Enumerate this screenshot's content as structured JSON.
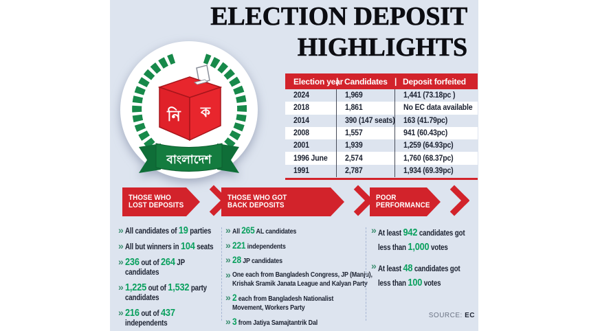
{
  "title": {
    "line1": "ELECTION DEPOSIT",
    "line2": "HIGHLIGHTS"
  },
  "logo": {
    "box_front_text": "নি",
    "box_side_text": "ক",
    "ribbon_text": "বাংলাদেশ"
  },
  "table": {
    "headers": [
      "Election year",
      "Candidates",
      "Deposit forfeited"
    ],
    "rows": [
      [
        "2024",
        "1,969",
        "1,441 (73.18pc )"
      ],
      [
        "2018",
        "1,861",
        "No EC data available"
      ],
      [
        "2014",
        "390 (147 seats)",
        "163 (41.79pc)"
      ],
      [
        "2008",
        "1,557",
        "941 (60.43pc)"
      ],
      [
        "2001",
        "1,939",
        "1,259 (64.93pc)"
      ],
      [
        "1996 June",
        "2,574",
        "1,760 (68.37pc)"
      ],
      [
        "1991",
        "2,787",
        "1,934 (69.39pc)"
      ]
    ]
  },
  "sections": [
    {
      "banner": {
        "line1": "THOSE WHO",
        "line2": "LOST DEPOSITS"
      },
      "items": [
        {
          "segments": [
            {
              "t": "All candidates of ",
              "em": false
            },
            {
              "t": "19",
              "em": true
            },
            {
              "t": " parties",
              "em": false
            }
          ]
        },
        {
          "segments": [
            {
              "t": "All but winners in ",
              "em": false
            },
            {
              "t": "104",
              "em": true
            },
            {
              "t": " seats",
              "em": false
            }
          ]
        },
        {
          "segments": [
            {
              "t": "236",
              "em": true
            },
            {
              "t": " out of ",
              "em": false
            },
            {
              "t": "264",
              "em": true
            },
            {
              "t": " JP",
              "em": false
            },
            {
              "br": true
            },
            {
              "t": "candidates",
              "em": false
            }
          ]
        },
        {
          "segments": [
            {
              "t": "1,225",
              "em": true
            },
            {
              "t": " out of ",
              "em": false
            },
            {
              "t": "1,532",
              "em": true
            },
            {
              "t": " party",
              "em": false
            },
            {
              "br": true
            },
            {
              "t": "candidates",
              "em": false
            }
          ]
        },
        {
          "segments": [
            {
              "t": "216",
              "em": true
            },
            {
              "t": " out of ",
              "em": false
            },
            {
              "t": "437",
              "em": true
            },
            {
              "br": true
            },
            {
              "t": "independents",
              "em": false
            }
          ]
        }
      ]
    },
    {
      "banner": {
        "line1": "THOSE WHO GOT",
        "line2": "BACK DEPOSITS"
      },
      "items": [
        {
          "segments": [
            {
              "t": "All ",
              "em": false
            },
            {
              "t": "265",
              "em": true
            },
            {
              "t": " AL candidates",
              "em": false
            }
          ]
        },
        {
          "segments": [
            {
              "t": "221",
              "em": true
            },
            {
              "t": " independents",
              "em": false
            }
          ]
        },
        {
          "segments": [
            {
              "t": "28",
              "em": true
            },
            {
              "t": " JP candidates",
              "em": false
            }
          ]
        },
        {
          "segments": [
            {
              "t": "One each from Bangladesh Congress, JP (Manju),",
              "em": false
            },
            {
              "br": true
            },
            {
              "t": "Krishak Sramik Janata League and Kalyan Party",
              "em": false
            }
          ]
        },
        {
          "segments": [
            {
              "t": "2",
              "em": true
            },
            {
              "t": " each from Bangladesh Nationalist",
              "em": false
            },
            {
              "br": true
            },
            {
              "t": "Movement, Workers Party",
              "em": false
            }
          ]
        },
        {
          "segments": [
            {
              "t": "3",
              "em": true
            },
            {
              "t": " from Jatiya Samajtantrik Dal",
              "em": false
            }
          ]
        }
      ]
    },
    {
      "banner": {
        "line1": "POOR",
        "line2": "PERFORMANCE"
      },
      "items": [
        {
          "segments": [
            {
              "t": "At least ",
              "em": false
            },
            {
              "t": "942",
              "em": true
            },
            {
              "t": " candidates got",
              "em": false
            },
            {
              "br": true
            },
            {
              "t": "less than ",
              "em": false
            },
            {
              "t": "1,000",
              "em": true
            },
            {
              "t": " votes",
              "em": false
            }
          ]
        },
        {
          "segments": [
            {
              "t": "At least ",
              "em": false
            },
            {
              "t": "48",
              "em": true
            },
            {
              "t": " candidates got",
              "em": false
            },
            {
              "br": true
            },
            {
              "t": "less than ",
              "em": false
            },
            {
              "t": "100",
              "em": true
            },
            {
              "t": " votes",
              "em": false
            }
          ]
        }
      ]
    }
  ],
  "source": {
    "label": "SOURCE:",
    "value": "EC"
  },
  "colors": {
    "background": "#dde4ef",
    "red": "#d2232b",
    "green_number": "#0aa05e",
    "bullet_green": "#3d8e71",
    "wreath_green": "#17894a",
    "ribbon_green": "#147c3f",
    "text_dark": "#1c2231"
  },
  "chart_data": {
    "type": "table",
    "title": "ELECTION DEPOSIT HIGHLIGHTS",
    "columns": [
      "Election year",
      "Candidates",
      "Deposit forfeited"
    ],
    "rows": [
      {
        "election_year": "2024",
        "candidates": 1969,
        "deposit_forfeited": 1441,
        "forfeited_pc": 73.18
      },
      {
        "election_year": "2018",
        "candidates": 1861,
        "deposit_forfeited": null,
        "forfeited_pc": null,
        "note": "No EC data available"
      },
      {
        "election_year": "2014",
        "candidates": 390,
        "candidates_note": "147 seats",
        "deposit_forfeited": 163,
        "forfeited_pc": 41.79
      },
      {
        "election_year": "2008",
        "candidates": 1557,
        "deposit_forfeited": 941,
        "forfeited_pc": 60.43
      },
      {
        "election_year": "2001",
        "candidates": 1939,
        "deposit_forfeited": 1259,
        "forfeited_pc": 64.93
      },
      {
        "election_year": "1996 June",
        "candidates": 2574,
        "deposit_forfeited": 1760,
        "forfeited_pc": 68.37
      },
      {
        "election_year": "1991",
        "candidates": 2787,
        "deposit_forfeited": 1934,
        "forfeited_pc": 69.39
      }
    ],
    "key_stats": {
      "lost_deposits": [
        "All candidates of 19 parties",
        "All but winners in 104 seats",
        "236 out of 264 JP candidates",
        "1,225 out of 1,532 party candidates",
        "216 out of 437 independents"
      ],
      "got_back_deposits": [
        "All 265 AL candidates",
        "221 independents",
        "28 JP candidates",
        "One each from Bangladesh Congress, JP (Manju), Krishak Sramik Janata League and Kalyan Party",
        "2 each from Bangladesh Nationalist Movement, Workers Party",
        "3 from Jatiya Samajtantrik Dal"
      ],
      "poor_performance": [
        "At least 942 candidates got less than 1,000 votes",
        "At least 48 candidates got less than 100 votes"
      ]
    },
    "source": "EC"
  }
}
